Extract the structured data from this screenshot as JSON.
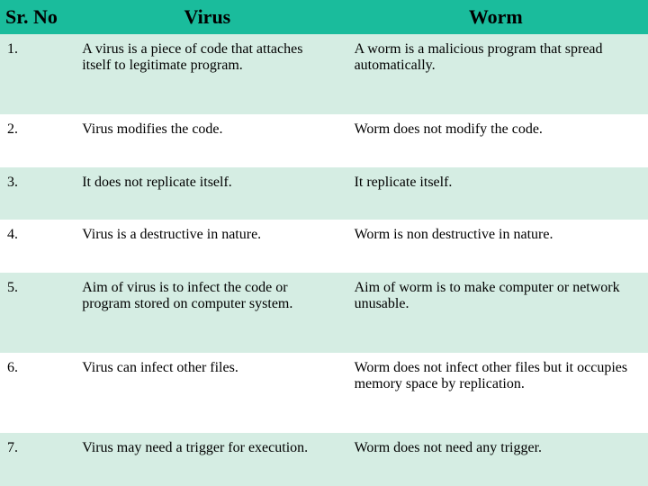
{
  "table": {
    "header_bg": "#1abc9c",
    "row_alt_bg": "#d5ede3",
    "row_bg": "#ffffff",
    "text_color": "#000000",
    "columns": [
      "Sr. No",
      "Virus",
      "Worm"
    ],
    "rows": [
      {
        "sr": "1.",
        "virus": "A virus is a piece of code that attaches itself to legitimate program.",
        "worm": "A worm is a malicious program that spread automatically."
      },
      {
        "sr": "2.",
        "virus": "Virus modifies the code.",
        "worm": "Worm does not modify the code."
      },
      {
        "sr": "3.",
        "virus": "It does not replicate itself.",
        "worm": "It replicate itself."
      },
      {
        "sr": "4.",
        "virus": "Virus is a destructive in nature.",
        "worm": "Worm is non destructive in nature."
      },
      {
        "sr": "5.",
        "virus": "Aim of virus is to infect the code or program stored on computer system.",
        "worm": "Aim of worm is to make computer or network unusable."
      },
      {
        "sr": "6.",
        "virus": "Virus can infect other files.",
        "worm": "Worm does not infect other files but it occupies memory space by replication."
      },
      {
        "sr": "7.",
        "virus": "Virus may need a trigger for execution.",
        "worm": "Worm does not need any trigger."
      }
    ]
  }
}
